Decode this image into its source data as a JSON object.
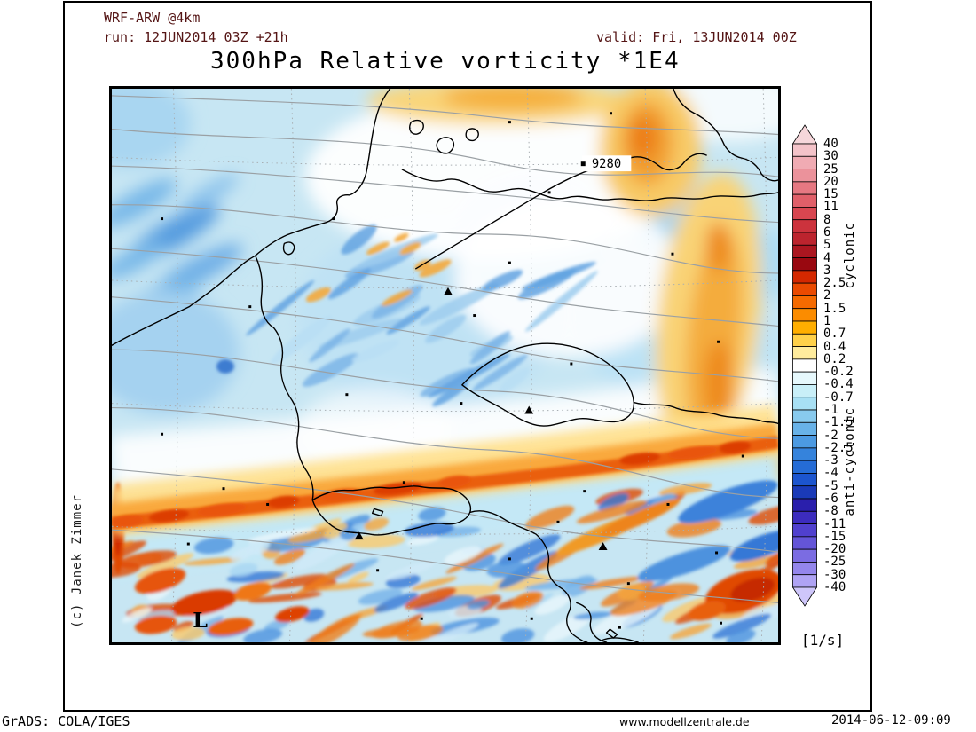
{
  "header": {
    "model": "WRF-ARW @4km",
    "run": "run: 12JUN2014 03Z +21h",
    "valid": "valid: Fri, 13JUN2014 00Z"
  },
  "title": "300hPa Relative vorticity *1E4",
  "map": {
    "height_contour_label": "9280",
    "low_center_label": "L"
  },
  "colorbar": {
    "unit": "[1/s]",
    "label_positive": "cyclonic",
    "label_negative": "anti-cyclonic",
    "tick_labels": [
      "40",
      "30",
      "25",
      "20",
      "15",
      "11",
      "8",
      "6",
      "5",
      "4",
      "3",
      "2.5",
      "2",
      "1.5",
      "1",
      "0.7",
      "0.4",
      "0.2",
      "-0.2",
      "-0.4",
      "-0.7",
      "-1",
      "-1.5",
      "-2",
      "-2.5",
      "-3",
      "-4",
      "-5",
      "-6",
      "-8",
      "-11",
      "-15",
      "-20",
      "-25",
      "-30",
      "-40"
    ],
    "cell_colors": [
      "#F4C3C9",
      "#F0ABB3",
      "#EB929B",
      "#E67882",
      "#E05F69",
      "#D84650",
      "#CC333D",
      "#BC242E",
      "#AB1620",
      "#990810",
      "#D42800",
      "#EA4A00",
      "#F56A00",
      "#FB8C00",
      "#FFAE00",
      "#FFD14A",
      "#FFEC9D",
      "#FFFFFF",
      "#E6F8FC",
      "#C9EFF8",
      "#A8E0F4",
      "#88CAEE",
      "#68B2E8",
      "#4C9AE2",
      "#3583DC",
      "#256CD6",
      "#1C55CE",
      "#1A3AB8",
      "#2A1FAC",
      "#3C2CBE",
      "#5040CE",
      "#6455D8",
      "#7B6CE2",
      "#9486EC",
      "#AFA3F4"
    ],
    "triangle_top_color": "#F6D7DB",
    "triangle_bottom_color": "#CEC6FA"
  },
  "credit": "(c) Janek Zimmer",
  "footer": {
    "left": "GrADS: COLA/IGES",
    "center": "www.modellzentrale.de",
    "right": "2014-06-12-09:09"
  },
  "colors": {
    "header_text": "#541414",
    "map_base": "#C7E6F3",
    "jet_core": "#EA5E0C",
    "contour_gray": "#9AA0A4"
  }
}
